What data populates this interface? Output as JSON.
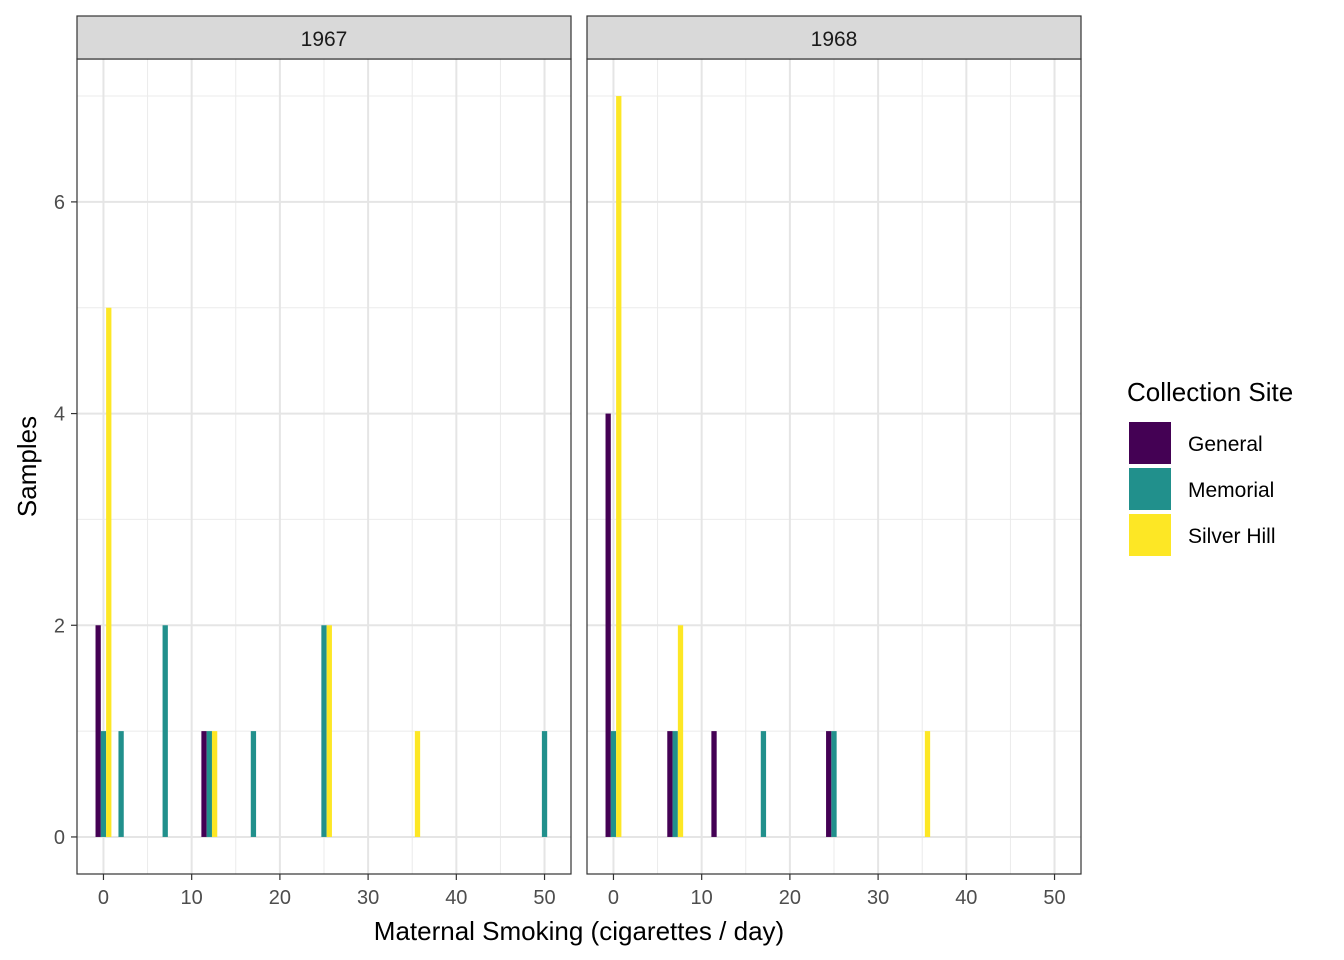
{
  "chart_data": {
    "type": "bar",
    "xlabel": "Maternal Smoking (cigarettes / day)",
    "ylabel": "Samples",
    "xlim": [
      -3,
      53
    ],
    "ylim": [
      -0.35,
      7.35
    ],
    "x_ticks": [
      0,
      10,
      20,
      30,
      40,
      50
    ],
    "y_ticks": [
      0,
      2,
      4,
      6
    ],
    "grid": true,
    "legend": {
      "title": "Collection Site",
      "position": "right",
      "entries": [
        {
          "name": "General",
          "color": "#440154"
        },
        {
          "name": "Memorial",
          "color": "#21908C"
        },
        {
          "name": "Silver Hill",
          "color": "#FDE725"
        }
      ]
    },
    "panels": [
      {
        "strip": "1967",
        "series": [
          {
            "name": "General",
            "points": [
              [
                0,
                2
              ],
              [
                12,
                1
              ]
            ]
          },
          {
            "name": "Memorial",
            "points": [
              [
                0,
                1
              ],
              [
                2,
                1
              ],
              [
                7,
                2
              ],
              [
                12,
                1
              ],
              [
                17,
                1
              ],
              [
                25,
                2
              ],
              [
                50,
                1
              ]
            ]
          },
          {
            "name": "Silver Hill",
            "points": [
              [
                0,
                5
              ],
              [
                12,
                1
              ],
              [
                25,
                2
              ],
              [
                35,
                1
              ]
            ]
          }
        ]
      },
      {
        "strip": "1968",
        "series": [
          {
            "name": "General",
            "points": [
              [
                0,
                4
              ],
              [
                7,
                1
              ],
              [
                12,
                1
              ],
              [
                25,
                1
              ]
            ]
          },
          {
            "name": "Memorial",
            "points": [
              [
                0,
                1
              ],
              [
                7,
                1
              ],
              [
                17,
                1
              ],
              [
                25,
                1
              ]
            ]
          },
          {
            "name": "Silver Hill",
            "points": [
              [
                0,
                7
              ],
              [
                7,
                2
              ],
              [
                35,
                1
              ]
            ]
          }
        ]
      }
    ]
  }
}
